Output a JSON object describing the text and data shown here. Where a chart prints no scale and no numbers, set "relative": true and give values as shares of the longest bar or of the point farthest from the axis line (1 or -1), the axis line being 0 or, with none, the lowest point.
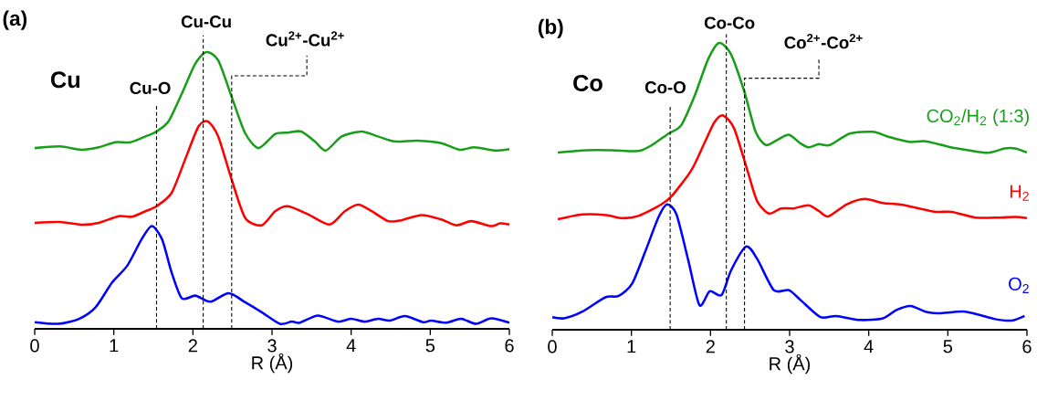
{
  "chart_data": [
    {
      "type": "line",
      "relative": true,
      "title": "(a)",
      "annotations": [
        "Cu"
      ],
      "xlabel": "R (Å)",
      "xlim": [
        0,
        6
      ],
      "xticks": [
        0,
        1,
        2,
        3,
        4,
        5,
        6
      ],
      "ref_lines": [
        {
          "axis": "x",
          "value": 1.54,
          "label": "Cu-O",
          "line_style": "dashed"
        },
        {
          "axis": "x",
          "value": 2.13,
          "label": "Cu-Cu",
          "line_style": "dashed"
        },
        {
          "axis": "x",
          "value": 2.49,
          "label": "Cu$^{2+}$-Cu$^{2+}$",
          "line_style": "dashed"
        }
      ],
      "series": [
        {
          "color": "#189e18",
          "x": [
            0,
            0.32,
            0.59,
            0.81,
            1.02,
            1.21,
            1.4,
            1.54,
            1.69,
            1.86,
            2.03,
            2.17,
            2.32,
            2.49,
            2.66,
            2.83,
            3.04,
            3.2,
            3.37,
            3.54,
            3.68,
            3.88,
            4.13,
            4.34,
            4.55,
            4.84,
            5.14,
            5.37,
            5.56,
            5.81,
            6.0
          ],
          "values": [
            0.653,
            0.659,
            0.647,
            0.656,
            0.674,
            0.674,
            0.695,
            0.713,
            0.749,
            0.85,
            0.958,
            1.0,
            0.97,
            0.838,
            0.707,
            0.653,
            0.704,
            0.709,
            0.713,
            0.677,
            0.644,
            0.695,
            0.713,
            0.695,
            0.677,
            0.68,
            0.671,
            0.647,
            0.656,
            0.644,
            0.649
          ]
        },
        {
          "color": "#ff0000",
          "x": [
            0,
            0.32,
            0.59,
            0.81,
            1.06,
            1.23,
            1.4,
            1.54,
            1.73,
            1.9,
            2.07,
            2.19,
            2.32,
            2.49,
            2.66,
            2.87,
            3.04,
            3.2,
            3.46,
            3.73,
            3.92,
            4.09,
            4.26,
            4.47,
            4.63,
            4.89,
            5.14,
            5.33,
            5.52,
            5.77,
            5.88,
            6.0
          ],
          "values": [
            0.383,
            0.386,
            0.376,
            0.383,
            0.407,
            0.405,
            0.425,
            0.443,
            0.491,
            0.611,
            0.731,
            0.749,
            0.695,
            0.539,
            0.401,
            0.374,
            0.425,
            0.443,
            0.413,
            0.377,
            0.425,
            0.449,
            0.425,
            0.389,
            0.392,
            0.411,
            0.395,
            0.374,
            0.389,
            0.371,
            0.381,
            0.377
          ]
        },
        {
          "color": "#0000ff",
          "x": [
            0,
            0.3,
            0.56,
            0.77,
            0.98,
            1.17,
            1.35,
            1.48,
            1.61,
            1.73,
            1.86,
            2.03,
            2.22,
            2.45,
            2.66,
            2.87,
            3.1,
            3.25,
            3.35,
            3.58,
            3.83,
            4.0,
            4.17,
            4.34,
            4.49,
            4.68,
            4.91,
            5.01,
            5.2,
            5.39,
            5.58,
            5.77,
            6.0
          ],
          "values": [
            0.024,
            0.018,
            0.036,
            0.078,
            0.168,
            0.228,
            0.323,
            0.371,
            0.323,
            0.204,
            0.11,
            0.12,
            0.098,
            0.129,
            0.096,
            0.06,
            0.018,
            0.026,
            0.022,
            0.048,
            0.026,
            0.036,
            0.026,
            0.036,
            0.03,
            0.046,
            0.024,
            0.03,
            0.022,
            0.036,
            0.018,
            0.038,
            0.022
          ]
        }
      ]
    },
    {
      "type": "line",
      "relative": true,
      "title": "(b)",
      "annotations": [
        "Co"
      ],
      "xlabel": "R (Å)",
      "xlim": [
        0,
        6
      ],
      "xticks": [
        0,
        1,
        2,
        3,
        4,
        5,
        6
      ],
      "ref_lines": [
        {
          "axis": "x",
          "value": 1.49,
          "label": "Co-O",
          "line_style": "dashed"
        },
        {
          "axis": "x",
          "value": 2.2,
          "label": "Co-Co",
          "line_style": "dashed"
        },
        {
          "axis": "x",
          "value": 2.43,
          "label": "Co$^{2+}$-Co$^{2+}$",
          "line_style": "dashed"
        }
      ],
      "series": [
        {
          "name": "CO$_{2}$/H$_{2}$ (1:3)",
          "color": "#189e18",
          "x": [
            0.07,
            0.43,
            0.76,
            1.09,
            1.26,
            1.47,
            1.63,
            1.8,
            1.97,
            2.11,
            2.26,
            2.43,
            2.57,
            2.7,
            2.84,
            2.99,
            3.14,
            3.24,
            3.37,
            3.51,
            3.76,
            4.05,
            4.26,
            4.51,
            4.72,
            5.01,
            5.26,
            5.51,
            5.72,
            5.85,
            6.0
          ],
          "values": [
            0.618,
            0.626,
            0.626,
            0.623,
            0.644,
            0.684,
            0.713,
            0.816,
            0.943,
            1.0,
            0.96,
            0.828,
            0.69,
            0.644,
            0.661,
            0.68,
            0.649,
            0.636,
            0.647,
            0.644,
            0.684,
            0.69,
            0.672,
            0.655,
            0.657,
            0.638,
            0.626,
            0.617,
            0.632,
            0.632,
            0.618
          ]
        },
        {
          "name": "H$_{2}$",
          "color": "#ff0000",
          "x": [
            0.07,
            0.38,
            0.68,
            0.88,
            1.09,
            1.38,
            1.51,
            1.76,
            1.93,
            2.05,
            2.16,
            2.3,
            2.47,
            2.59,
            2.74,
            2.89,
            3.05,
            3.24,
            3.37,
            3.49,
            3.72,
            3.95,
            4.18,
            4.39,
            4.6,
            4.85,
            5.05,
            5.35,
            5.64,
            5.85,
            6.0
          ],
          "values": [
            0.385,
            0.402,
            0.4,
            0.389,
            0.397,
            0.437,
            0.466,
            0.557,
            0.655,
            0.724,
            0.747,
            0.701,
            0.552,
            0.448,
            0.405,
            0.423,
            0.423,
            0.434,
            0.414,
            0.395,
            0.437,
            0.456,
            0.442,
            0.437,
            0.425,
            0.411,
            0.411,
            0.391,
            0.391,
            0.393,
            0.389
          ]
        },
        {
          "name": "O$_{2}$",
          "color": "#0000ff",
          "x": [
            0,
            0.15,
            0.38,
            0.67,
            0.84,
            1.01,
            1.18,
            1.34,
            1.45,
            1.57,
            1.72,
            1.86,
            1.99,
            2.14,
            2.26,
            2.45,
            2.59,
            2.8,
            2.99,
            3.14,
            3.39,
            3.59,
            3.89,
            4.18,
            4.35,
            4.53,
            4.72,
            4.89,
            5.22,
            5.6,
            5.81,
            5.97
          ],
          "values": [
            0.044,
            0.04,
            0.063,
            0.113,
            0.118,
            0.161,
            0.276,
            0.391,
            0.437,
            0.402,
            0.241,
            0.086,
            0.134,
            0.121,
            0.207,
            0.29,
            0.247,
            0.138,
            0.138,
            0.103,
            0.044,
            0.048,
            0.034,
            0.04,
            0.069,
            0.083,
            0.063,
            0.057,
            0.063,
            0.037,
            0.032,
            0.048
          ]
        }
      ]
    }
  ]
}
